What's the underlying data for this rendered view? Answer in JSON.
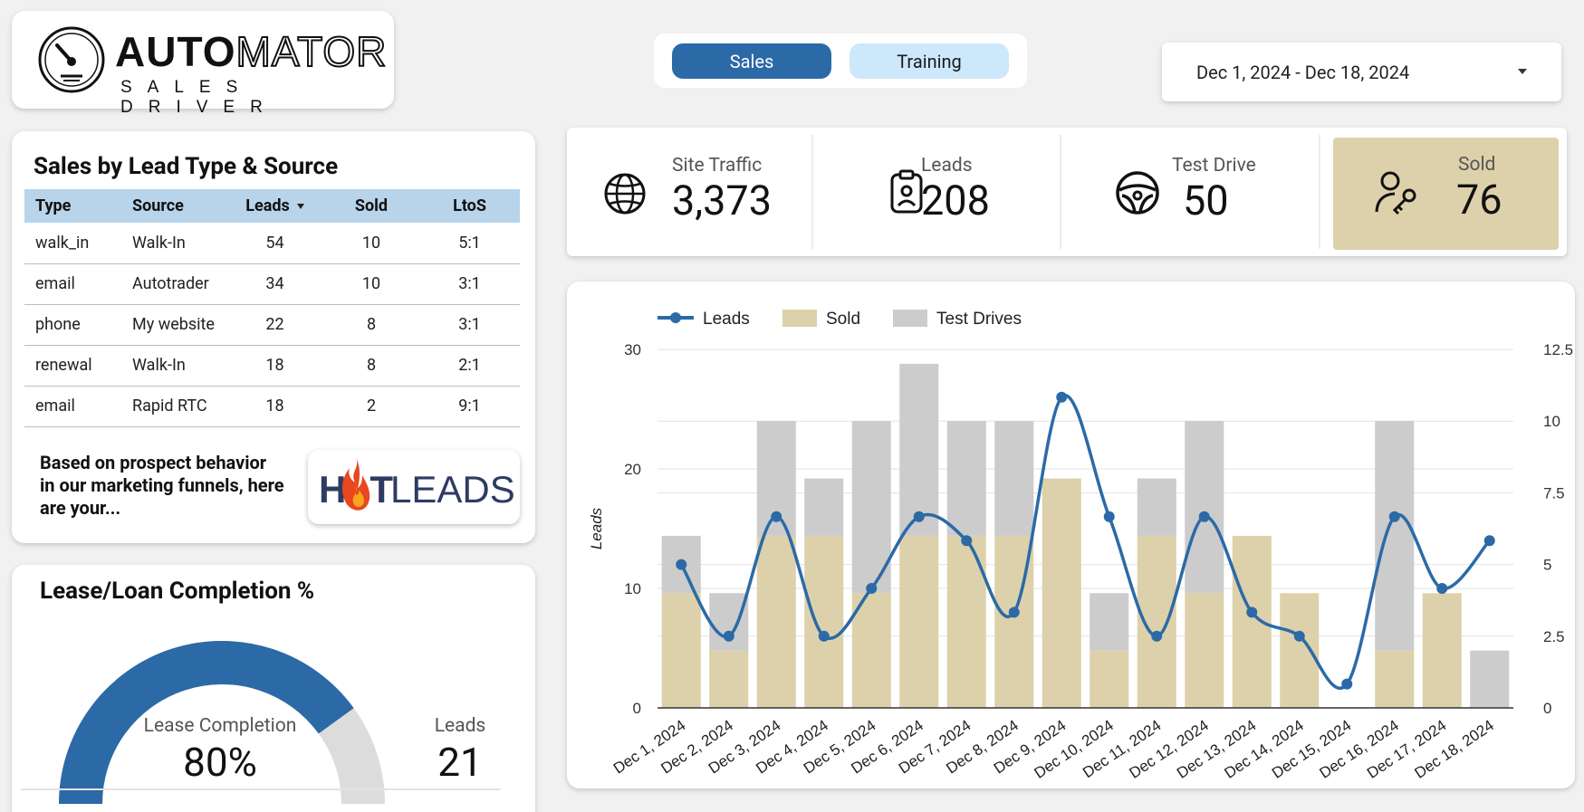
{
  "logo": {
    "word_bold": "AUTO",
    "word_outline": "MATOR",
    "tagline": "SALES DRIVER"
  },
  "tabs": [
    {
      "label": "Sales",
      "active": true
    },
    {
      "label": "Training",
      "active": false
    }
  ],
  "date_range": {
    "value": "Dec 1, 2024 - Dec 18, 2024"
  },
  "lead_table": {
    "title": "Sales by Lead Type & Source",
    "columns": [
      "Type",
      "Source",
      "Leads",
      "Sold",
      "LtoS"
    ],
    "rows": [
      [
        "walk_in",
        "Walk-In",
        "54",
        "10",
        "5:1"
      ],
      [
        "email",
        "Autotrader",
        "34",
        "10",
        "3:1"
      ],
      [
        "phone",
        "My website",
        "22",
        "8",
        "3:1"
      ],
      [
        "renewal",
        "Walk-In",
        "18",
        "8",
        "2:1"
      ],
      [
        "email",
        "Rapid RTC",
        "18",
        "2",
        "9:1"
      ]
    ],
    "prospect_text": "Based on prospect behavior in our marketing funnels, here are your...",
    "hot_leads_badge": {
      "word1": "H",
      "word1b": "T",
      "word2": "LEADS"
    }
  },
  "lease_loan": {
    "title": "Lease/Loan Completion %",
    "gauge_label": "Lease Completion",
    "gauge_value": "80%",
    "gauge_fraction": 0.8,
    "leads_label": "Leads",
    "leads_value": "21",
    "colors": {
      "fill": "#2b6aa6",
      "track": "#dcdcdc"
    }
  },
  "kpis": [
    {
      "label": "Site Traffic",
      "value": "3,373",
      "icon": "globe-icon"
    },
    {
      "label": "Leads",
      "value": "208",
      "icon": "clipboard-user-icon"
    },
    {
      "label": "Test Drive",
      "value": "50",
      "icon": "steering-wheel-icon"
    },
    {
      "label": "Sold",
      "value": "76",
      "icon": "user-key-icon"
    }
  ],
  "chart_data": {
    "type": "bar",
    "categories": [
      "Dec 1, 2024",
      "Dec 2, 2024",
      "Dec 3, 2024",
      "Dec 4, 2024",
      "Dec 5, 2024",
      "Dec 6, 2024",
      "Dec 7, 2024",
      "Dec 8, 2024",
      "Dec 9, 2024",
      "Dec 10, 2024",
      "Dec 11, 2024",
      "Dec 12, 2024",
      "Dec 13, 2024",
      "Dec 14, 2024",
      "Dec 15, 2024",
      "Dec 16, 2024",
      "Dec 17, 2024",
      "Dec 18, 2024"
    ],
    "series": [
      {
        "name": "Leads",
        "kind": "line",
        "axis": "left",
        "color": "#2b6aa6",
        "values": [
          12,
          6,
          16,
          6,
          10,
          16,
          14,
          8,
          26,
          16,
          6,
          16,
          8,
          6,
          2,
          16,
          10,
          14
        ]
      },
      {
        "name": "Sold",
        "kind": "bar",
        "axis": "right",
        "color": "#ddd1ab",
        "values": [
          4,
          2,
          6,
          6,
          4,
          6,
          6,
          6,
          8,
          2,
          6,
          4,
          6,
          4,
          0,
          2,
          4,
          0
        ]
      },
      {
        "name": "Test Drives",
        "kind": "bar",
        "axis": "right",
        "color": "#cccccc",
        "values": [
          2,
          2,
          4,
          2,
          6,
          6,
          4,
          4,
          0,
          2,
          2,
          6,
          0,
          0,
          0,
          8,
          0,
          2
        ]
      }
    ],
    "ylabel": "Leads",
    "ylim": [
      0,
      30
    ],
    "y_ticks": [
      "0",
      "10",
      "20",
      "30"
    ],
    "y2lim": [
      0,
      12.5
    ],
    "y2_ticks": [
      "0",
      "2.5",
      "5",
      "7.5",
      "10",
      "12.5"
    ],
    "stacked": true,
    "grid": true,
    "legend": "top-left"
  }
}
